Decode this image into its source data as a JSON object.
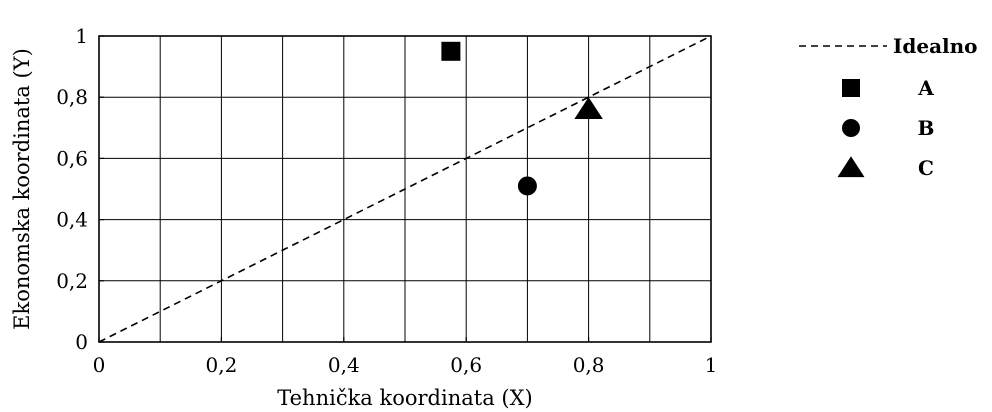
{
  "chart_data": {
    "type": "scatter",
    "xlabel": "Tehnička koordinata (X)",
    "ylabel": "Ekonomska koordinata (Y)",
    "xlim": [
      0,
      1
    ],
    "ylim": [
      0,
      1
    ],
    "x_ticks": [
      {
        "value": 0,
        "label": "0"
      },
      {
        "value": 0.2,
        "label": "0,2"
      },
      {
        "value": 0.4,
        "label": "0,4"
      },
      {
        "value": 0.6,
        "label": "0,6"
      },
      {
        "value": 0.8,
        "label": "0,8"
      },
      {
        "value": 1,
        "label": "1"
      }
    ],
    "y_ticks": [
      {
        "value": 0,
        "label": "0"
      },
      {
        "value": 0.2,
        "label": "0,2"
      },
      {
        "value": 0.4,
        "label": "0,4"
      },
      {
        "value": 0.6,
        "label": "0,6"
      },
      {
        "value": 0.8,
        "label": "0,8"
      },
      {
        "value": 1,
        "label": "1"
      }
    ],
    "grid": true,
    "grid_step": 0.1,
    "legend_position": "outside-right",
    "series": [
      {
        "name": "Idealno",
        "kind": "dashed-line",
        "x": [
          0,
          1
        ],
        "y": [
          0,
          1
        ],
        "color": "#000000"
      },
      {
        "name": "A",
        "marker": "square",
        "x": 0.575,
        "y": 0.95,
        "color": "#000000"
      },
      {
        "name": "B",
        "marker": "circle",
        "x": 0.7,
        "y": 0.51,
        "color": "#000000"
      },
      {
        "name": "C",
        "marker": "triangle",
        "x": 0.8,
        "y": 0.76,
        "color": "#000000"
      }
    ]
  }
}
